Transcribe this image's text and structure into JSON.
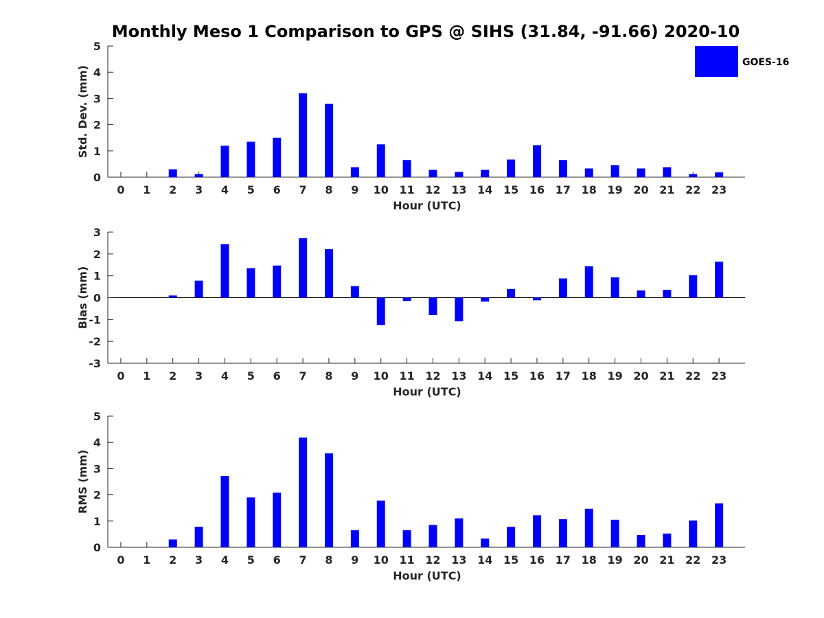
{
  "title": "Monthly Meso 1 Comparison to GPS @ SIHS (31.84, -91.66) 2020-10",
  "legend": {
    "label": "GOES-16",
    "color": "#0000ff",
    "placement": "top-right"
  },
  "colors": {
    "bar": "#0000ff",
    "axis": "#262626"
  },
  "chart_data": [
    {
      "type": "bar",
      "xlabel": "Hour (UTC)",
      "ylabel": "Std. Dev. (mm)",
      "ylim": [
        0,
        5
      ],
      "yticks": [
        0,
        1,
        2,
        3,
        4,
        5
      ],
      "categories": [
        "0",
        "1",
        "2",
        "3",
        "4",
        "5",
        "6",
        "7",
        "8",
        "9",
        "10",
        "11",
        "12",
        "13",
        "14",
        "15",
        "16",
        "17",
        "18",
        "19",
        "20",
        "21",
        "22",
        "23"
      ],
      "series": [
        {
          "name": "GOES-16",
          "values": [
            0,
            0,
            0.3,
            0.12,
            1.2,
            1.35,
            1.5,
            3.2,
            2.8,
            0.38,
            1.25,
            0.65,
            0.28,
            0.2,
            0.28,
            0.67,
            1.22,
            0.65,
            0.33,
            0.46,
            0.33,
            0.38,
            0.12,
            0.18
          ]
        }
      ]
    },
    {
      "type": "bar",
      "xlabel": "Hour (UTC)",
      "ylabel": "Bias (mm)",
      "ylim": [
        -3,
        3
      ],
      "yticks": [
        -3,
        -2,
        -1,
        0,
        1,
        2,
        3
      ],
      "categories": [
        "0",
        "1",
        "2",
        "3",
        "4",
        "5",
        "6",
        "7",
        "8",
        "9",
        "10",
        "11",
        "12",
        "13",
        "14",
        "15",
        "16",
        "17",
        "18",
        "19",
        "20",
        "21",
        "22",
        "23"
      ],
      "series": [
        {
          "name": "GOES-16",
          "values": [
            0,
            0,
            0.1,
            0.78,
            2.45,
            1.35,
            1.47,
            2.72,
            2.22,
            0.53,
            -1.25,
            -0.15,
            -0.8,
            -1.08,
            -0.18,
            0.4,
            -0.12,
            0.88,
            1.44,
            0.93,
            0.33,
            0.36,
            1.03,
            1.65
          ]
        }
      ]
    },
    {
      "type": "bar",
      "xlabel": "Hour (UTC)",
      "ylabel": "RMS (mm)",
      "ylim": [
        0,
        5
      ],
      "yticks": [
        0,
        1,
        2,
        3,
        4,
        5
      ],
      "categories": [
        "0",
        "1",
        "2",
        "3",
        "4",
        "5",
        "6",
        "7",
        "8",
        "9",
        "10",
        "11",
        "12",
        "13",
        "14",
        "15",
        "16",
        "17",
        "18",
        "19",
        "20",
        "21",
        "22",
        "23"
      ],
      "series": [
        {
          "name": "GOES-16",
          "values": [
            0,
            0,
            0.3,
            0.78,
            2.72,
            1.9,
            2.08,
            4.18,
            3.58,
            0.65,
            1.78,
            0.65,
            0.85,
            1.1,
            0.33,
            0.78,
            1.22,
            1.07,
            1.47,
            1.05,
            0.47,
            0.52,
            1.02,
            1.67
          ]
        }
      ]
    }
  ]
}
